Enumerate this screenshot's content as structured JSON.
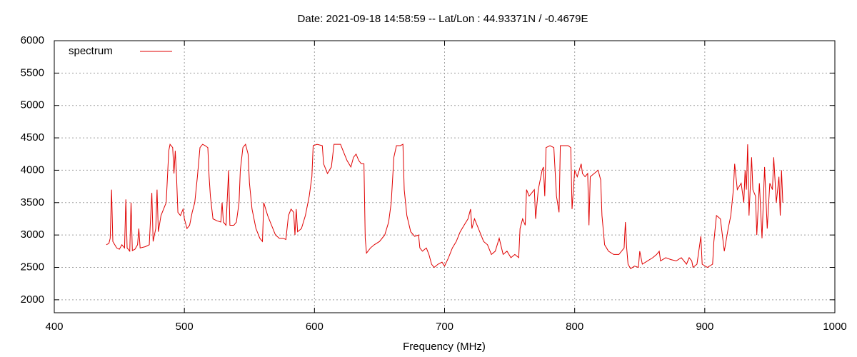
{
  "chart_data": {
    "type": "line",
    "title": "Date: 2021-09-18 14:58:59  --  Lat/Lon : 44.93371N / -0.4679E",
    "x_label": "Frequency (MHz)",
    "xlim": [
      400,
      1000
    ],
    "xticks": [
      400,
      500,
      600,
      700,
      800,
      900,
      1000
    ],
    "ylim": [
      1800,
      6000
    ],
    "yticks": [
      2000,
      2500,
      3000,
      3500,
      4000,
      4500,
      5000,
      5500,
      6000
    ],
    "grid": true,
    "legend": "top left",
    "x": [
      440,
      442,
      443,
      444,
      445,
      448,
      450,
      452,
      454,
      455,
      456,
      458,
      459,
      460,
      462,
      464,
      465,
      466,
      470,
      473,
      475,
      476,
      478,
      479,
      480,
      482,
      484,
      486,
      487,
      488,
      489,
      491,
      492,
      493,
      494,
      495,
      497,
      499,
      500,
      502,
      504,
      506,
      508,
      510,
      512,
      514,
      516,
      518,
      519,
      520,
      522,
      525,
      528,
      529,
      530,
      532,
      534,
      535,
      538,
      540,
      542,
      543,
      545,
      547,
      549,
      550,
      552,
      555,
      558,
      560,
      561,
      564,
      567,
      570,
      573,
      576,
      578,
      580,
      582,
      584,
      585,
      586,
      587,
      590,
      593,
      596,
      598,
      599,
      602,
      606,
      607,
      610,
      613,
      615,
      620,
      622,
      625,
      628,
      630,
      632,
      634,
      636,
      638,
      639,
      640,
      643,
      646,
      650,
      654,
      657,
      659,
      661,
      663,
      666,
      668,
      669,
      671,
      674,
      677,
      680,
      681,
      683,
      686,
      688,
      690,
      692,
      695,
      698,
      700,
      703,
      706,
      709,
      712,
      715,
      718,
      720,
      721,
      723,
      726,
      730,
      733,
      736,
      739,
      742,
      745,
      748,
      751,
      754,
      757,
      758,
      760,
      762,
      763,
      765,
      767,
      769,
      770,
      772,
      775,
      776,
      777,
      778,
      781,
      784,
      786,
      788,
      789,
      795,
      797,
      798,
      800,
      802,
      805,
      806,
      808,
      810,
      811,
      812,
      815,
      818,
      820,
      821,
      823,
      826,
      830,
      834,
      838,
      839,
      840,
      841,
      843,
      846,
      849,
      850,
      852,
      856,
      860,
      863,
      865,
      866,
      870,
      874,
      878,
      882,
      886,
      888,
      890,
      891,
      894,
      897,
      898,
      902,
      906,
      907,
      909,
      912,
      915,
      918,
      920,
      922,
      923,
      925,
      928,
      930,
      931,
      932,
      933,
      934,
      936,
      937,
      939,
      940,
      942,
      944,
      946,
      948,
      950,
      952,
      953,
      955,
      957,
      958,
      959,
      960
    ],
    "series": [
      {
        "name": "spectrum",
        "color": "#e00000",
        "values": [
          2850,
          2870,
          2950,
          3700,
          2900,
          2800,
          2780,
          2850,
          2800,
          3550,
          2800,
          2750,
          3500,
          2760,
          2780,
          2850,
          3100,
          2800,
          2820,
          2850,
          3650,
          2900,
          3100,
          3700,
          3050,
          3300,
          3400,
          3500,
          3900,
          4300,
          4400,
          4350,
          3950,
          4300,
          3900,
          3350,
          3300,
          3400,
          3250,
          3100,
          3150,
          3350,
          3500,
          3900,
          4350,
          4400,
          4380,
          4350,
          3900,
          3600,
          3250,
          3220,
          3200,
          3500,
          3200,
          3150,
          4000,
          3150,
          3150,
          3200,
          3500,
          4000,
          4350,
          4400,
          4250,
          3800,
          3400,
          3100,
          2950,
          2900,
          3500,
          3300,
          3150,
          3000,
          2950,
          2950,
          2930,
          3300,
          3400,
          3350,
          3000,
          3400,
          3050,
          3100,
          3300,
          3600,
          3900,
          4380,
          4400,
          4380,
          4100,
          3950,
          4050,
          4400,
          4400,
          4300,
          4150,
          4050,
          4200,
          4250,
          4150,
          4100,
          4100,
          2950,
          2720,
          2800,
          2850,
          2900,
          3000,
          3200,
          3500,
          4200,
          4380,
          4380,
          4400,
          3700,
          3300,
          3050,
          2980,
          3000,
          2800,
          2750,
          2800,
          2700,
          2550,
          2500,
          2550,
          2580,
          2520,
          2650,
          2800,
          2900,
          3050,
          3150,
          3250,
          3400,
          3100,
          3250,
          3100,
          2900,
          2850,
          2700,
          2750,
          2950,
          2700,
          2750,
          2650,
          2700,
          2650,
          3100,
          3250,
          3150,
          3700,
          3600,
          3650,
          3700,
          3250,
          3700,
          4000,
          4050,
          3600,
          4350,
          4380,
          4350,
          3600,
          3350,
          4380,
          4380,
          4350,
          3400,
          4000,
          3900,
          4100,
          3950,
          3900,
          3950,
          3150,
          3900,
          3950,
          4000,
          3850,
          3300,
          2850,
          2750,
          2700,
          2700,
          2800,
          3200,
          2800,
          2550,
          2480,
          2520,
          2500,
          2750,
          2550,
          2600,
          2650,
          2700,
          2750,
          2600,
          2650,
          2620,
          2600,
          2650,
          2550,
          2650,
          2600,
          2500,
          2550,
          2980,
          2550,
          2500,
          2550,
          2900,
          3300,
          3250,
          2750,
          3100,
          3300,
          3700,
          4100,
          3700,
          3800,
          3500,
          4000,
          3700,
          4400,
          3300,
          4200,
          3700,
          3600,
          3000,
          3800,
          2950,
          4050,
          3100,
          3800,
          3700,
          4200,
          3500,
          3900,
          3300,
          4000,
          3500
        ]
      }
    ]
  }
}
